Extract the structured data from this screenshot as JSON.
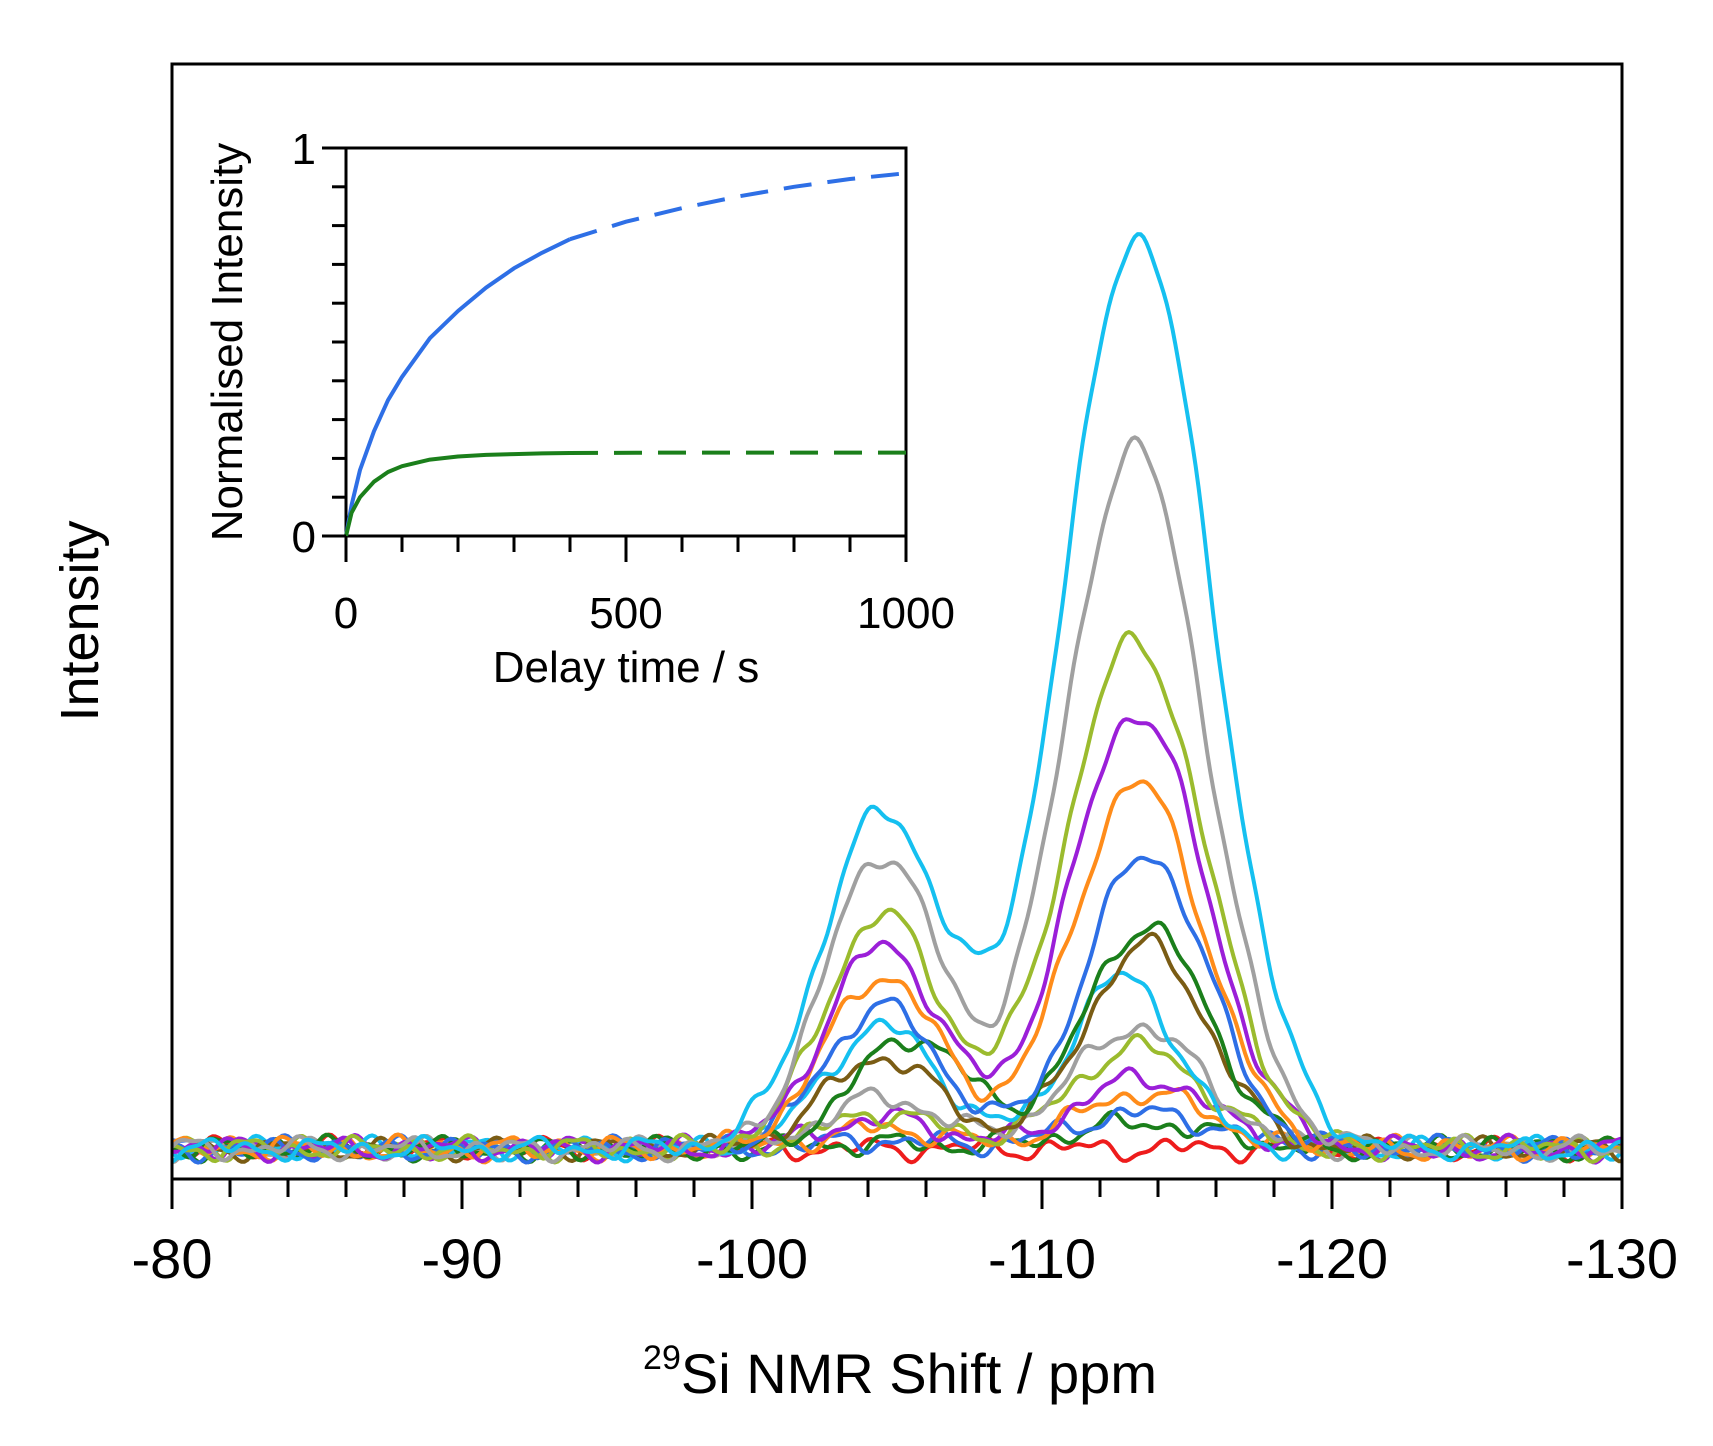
{
  "chart_data": [
    {
      "type": "line",
      "role": "main",
      "title": "",
      "xlabel_sup": "29",
      "xlabel_main": "Si NMR Shift / ppm",
      "ylabel": "Intensity",
      "xlim": [
        -80,
        -130
      ],
      "ylim": [
        -0.03,
        1.07
      ],
      "xticks": [
        -80,
        -90,
        -100,
        -110,
        -120,
        -130
      ],
      "xtick_labels": [
        "-80",
        "-90",
        "-100",
        "-110",
        "-120",
        "-130"
      ],
      "minor_xtick_step": 2,
      "yticks": [],
      "series": [
        {
          "name": "spectrum 1",
          "color": "#ee1c1c",
          "peaks": [
            [
              -113.0,
              3.5,
              0.0
            ]
          ],
          "baseline_dip": 0.0
        },
        {
          "name": "spectrum 2",
          "color": "#1b7f1b",
          "peaks": [
            [
              -104.5,
              2.8,
              0.005
            ],
            [
              -113.5,
              3.5,
              0.025
            ]
          ]
        },
        {
          "name": "spectrum 3",
          "color": "#2e6fe6",
          "peaks": [
            [
              -104.5,
              2.8,
              0.008
            ],
            [
              -113.5,
              3.5,
              0.035
            ]
          ]
        },
        {
          "name": "spectrum 4",
          "color": "#ff8c1a",
          "peaks": [
            [
              -104.5,
              2.8,
              0.02
            ],
            [
              -113.5,
              3.2,
              0.055
            ]
          ]
        },
        {
          "name": "spectrum 5",
          "color": "#9b1fd8",
          "peaks": [
            [
              -104.5,
              2.8,
              0.03
            ],
            [
              -113.5,
              3.2,
              0.07
            ]
          ]
        },
        {
          "name": "spectrum 6",
          "color": "#9bbb2e",
          "peaks": [
            [
              -104.5,
              2.8,
              0.035
            ],
            [
              -113.3,
              3.2,
              0.1
            ]
          ]
        },
        {
          "name": "spectrum 7",
          "color": "#a0a0a0",
          "peaks": [
            [
              -104.5,
              2.8,
              0.05
            ],
            [
              -113.3,
              3.2,
              0.12
            ]
          ]
        },
        {
          "name": "spectrum 8",
          "color": "#15c0f0",
          "peaks": [
            [
              -104.5,
              2.8,
              0.12
            ],
            [
              -112.8,
              2.6,
              0.17
            ]
          ]
        },
        {
          "name": "spectrum 9",
          "color": "#7a5c14",
          "peaks": [
            [
              -104.5,
              2.8,
              0.09
            ],
            [
              -113.6,
              3.0,
              0.2
            ]
          ]
        },
        {
          "name": "spectrum 10",
          "color": "#1b7f1b",
          "peaks": [
            [
              -105.5,
              2.8,
              0.11
            ],
            [
              -113.6,
              3.0,
              0.22
            ]
          ]
        },
        {
          "name": "spectrum 11",
          "color": "#2e6fe6",
          "peaks": [
            [
              -104.5,
              2.8,
              0.14
            ],
            [
              -113.6,
              3.0,
              0.29
            ]
          ]
        },
        {
          "name": "spectrum 12",
          "color": "#ff8c1a",
          "peaks": [
            [
              -104.5,
              2.8,
              0.17
            ],
            [
              -113.3,
              3.2,
              0.36
            ]
          ]
        },
        {
          "name": "spectrum 13",
          "color": "#9b1fd8",
          "peaks": [
            [
              -104.5,
              2.8,
              0.2
            ],
            [
              -113.3,
              3.3,
              0.43
            ]
          ]
        },
        {
          "name": "spectrum 14",
          "color": "#9bbb2e",
          "peaks": [
            [
              -104.5,
              2.8,
              0.23
            ],
            [
              -113.2,
              3.4,
              0.5
            ]
          ]
        },
        {
          "name": "spectrum 15",
          "color": "#a0a0a0",
          "peaks": [
            [
              -104.5,
              2.8,
              0.29
            ],
            [
              -113.2,
              3.4,
              0.69
            ]
          ]
        },
        {
          "name": "spectrum 16",
          "color": "#15c0f0",
          "peaks": [
            [
              -104.5,
              3.0,
              0.33
            ],
            [
              -113.3,
              3.6,
              0.9
            ]
          ]
        }
      ]
    },
    {
      "type": "line",
      "role": "inset",
      "title": "",
      "xlabel": "Delay time / s",
      "ylabel": "Normalised Intensity",
      "xlim": [
        0,
        1000
      ],
      "ylim": [
        0,
        1
      ],
      "xticks": [
        0,
        500,
        1000
      ],
      "xtick_labels": [
        "0",
        "500",
        "1000"
      ],
      "minor_xtick_step": 100,
      "yticks": [
        0,
        1
      ],
      "ytick_labels": [
        "0",
        "1"
      ],
      "minor_ytick_step": 0.1,
      "series": [
        {
          "name": "blue fit",
          "color": "#2e6fe6",
          "x": [
            0,
            10,
            25,
            50,
            75,
            100,
            150,
            200,
            250,
            300,
            350,
            400
          ],
          "y": [
            0,
            0.08,
            0.17,
            0.27,
            0.35,
            0.41,
            0.51,
            0.58,
            0.64,
            0.69,
            0.73,
            0.765
          ],
          "extrapolation": {
            "x": [
              400,
              500,
              600,
              700,
              800,
              900,
              1000
            ],
            "y": [
              0.765,
              0.81,
              0.845,
              0.875,
              0.9,
              0.92,
              0.935
            ]
          }
        },
        {
          "name": "green fit",
          "color": "#1b7f1b",
          "x": [
            0,
            10,
            25,
            50,
            75,
            100,
            150,
            200,
            250,
            300,
            350,
            400
          ],
          "y": [
            0,
            0.06,
            0.1,
            0.14,
            0.165,
            0.18,
            0.197,
            0.205,
            0.209,
            0.211,
            0.213,
            0.214
          ],
          "extrapolation": {
            "x": [
              400,
              600,
              800,
              1000
            ],
            "y": [
              0.214,
              0.215,
              0.215,
              0.215
            ]
          }
        }
      ]
    }
  ]
}
